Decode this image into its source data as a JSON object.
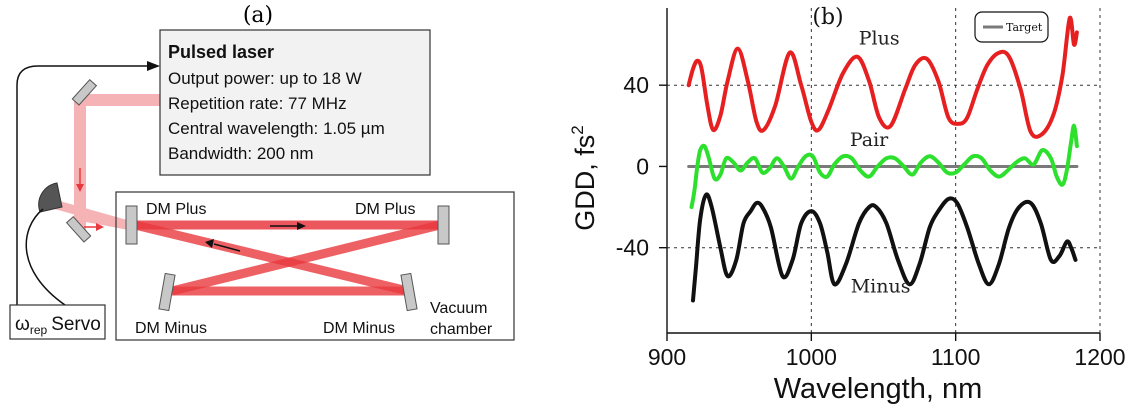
{
  "panel_a": {
    "label": "(a)",
    "laser": {
      "title": "Pulsed laser",
      "lines": [
        "Output power: up to 18 W",
        "Repetition rate: 77 MHz",
        "Central wavelength: 1.05 µm",
        "Bandwidth: 200 nm"
      ]
    },
    "mirrors": {
      "dm_plus_left": "DM Plus",
      "dm_plus_right": "DM Plus",
      "dm_minus_left": "DM Minus",
      "dm_minus_right": "DM Minus"
    },
    "chamber": {
      "line1": "Vacuum",
      "line2": "chamber"
    },
    "servo": {
      "omega": "ω",
      "subscript": "rep",
      "label": "Servo"
    },
    "colors": {
      "beam": "#e8393f",
      "beam_faint": "#f5b3b5",
      "box_fill": "#f2f2f2",
      "mirror_fill": "#c8c8c8",
      "detector": "#555555"
    }
  },
  "chart_data": {
    "type": "line",
    "panel_label": "(b)",
    "xlabel": "Wavelength, nm",
    "ylabel": "GDD, fs",
    "ylabel_sup": "2",
    "xlim": [
      900,
      1200
    ],
    "ylim": [
      -82,
      78
    ],
    "xticks": [
      900,
      1000,
      1100,
      1200
    ],
    "yticks": [
      -40,
      0,
      40
    ],
    "grid": "dashed",
    "legend_placement": "top-right",
    "legend": [
      "Target"
    ],
    "series": [
      {
        "name": "Plus",
        "color": "#e62020",
        "x": [
          915,
          918,
          921,
          924,
          928,
          932,
          937,
          942,
          949,
          956,
          962,
          967,
          975,
          985,
          993,
          1000,
          1005,
          1012,
          1022,
          1032,
          1040,
          1047,
          1055,
          1065,
          1072,
          1080,
          1088,
          1095,
          1102,
          1108,
          1115,
          1122,
          1130,
          1137,
          1145,
          1152,
          1160,
          1168,
          1174,
          1179,
          1182,
          1184
        ],
        "y": [
          40,
          48,
          52,
          48,
          30,
          18,
          25,
          42,
          58,
          42,
          22,
          18,
          30,
          56,
          40,
          22,
          18,
          28,
          46,
          54,
          42,
          24,
          20,
          38,
          50,
          53,
          42,
          24,
          21,
          24,
          38,
          50,
          56,
          54,
          38,
          17,
          16,
          26,
          45,
          73,
          60,
          66
        ]
      },
      {
        "name": "Pair",
        "color": "#2ee02e",
        "x": [
          917,
          919,
          921,
          923,
          926,
          929,
          933,
          937,
          941,
          946,
          951,
          956,
          961,
          966,
          971,
          976,
          981,
          986,
          991,
          996,
          1001,
          1006,
          1011,
          1016,
          1022,
          1028,
          1034,
          1040,
          1046,
          1052,
          1058,
          1064,
          1070,
          1076,
          1082,
          1088,
          1094,
          1100,
          1106,
          1112,
          1118,
          1124,
          1130,
          1136,
          1142,
          1148,
          1154,
          1160,
          1166,
          1170,
          1174,
          1177,
          1180,
          1182,
          1184
        ],
        "y": [
          -20,
          -12,
          0,
          8,
          10,
          4,
          -6,
          -4,
          4,
          2,
          -2,
          2,
          4,
          -3,
          -1,
          4,
          0,
          -6,
          0,
          5,
          5,
          -3,
          -5,
          1,
          5,
          4,
          -2,
          -5,
          0,
          4,
          4,
          0,
          -4,
          2,
          5,
          2,
          -3,
          -3,
          1,
          5,
          4,
          -2,
          -5,
          -2,
          2,
          4,
          1,
          8,
          4,
          -5,
          -9,
          -2,
          12,
          20,
          10
        ]
      },
      {
        "name": "Minus",
        "color": "#111111",
        "x": [
          918,
          920,
          923,
          927,
          931,
          937,
          942,
          948,
          953,
          958,
          962,
          966,
          972,
          980,
          987,
          993,
          1000,
          1006,
          1011,
          1016,
          1024,
          1033,
          1040,
          1045,
          1052,
          1060,
          1068,
          1075,
          1082,
          1088,
          1095,
          1101,
          1108,
          1116,
          1123,
          1130,
          1137,
          1144,
          1152,
          1159,
          1166,
          1172,
          1177,
          1180,
          1183
        ],
        "y": [
          -66,
          -50,
          -26,
          -14,
          -20,
          -40,
          -54,
          -46,
          -28,
          -22,
          -18,
          -20,
          -30,
          -54,
          -46,
          -28,
          -22,
          -28,
          -42,
          -58,
          -48,
          -28,
          -20,
          -20,
          -28,
          -46,
          -58,
          -48,
          -30,
          -22,
          -16,
          -18,
          -30,
          -48,
          -58,
          -48,
          -30,
          -20,
          -18,
          -28,
          -46,
          -44,
          -37,
          -40,
          -46
        ]
      },
      {
        "name": "Target",
        "color": "#7a7a7a",
        "x": [
          915,
          1184
        ],
        "y": [
          0,
          0
        ]
      }
    ],
    "annotations": [
      {
        "text": "Plus",
        "x": 1047,
        "y": 60
      },
      {
        "text": "Pair",
        "x": 1040,
        "y": 10
      },
      {
        "text": "Minus",
        "x": 1048,
        "y": -62
      }
    ]
  }
}
